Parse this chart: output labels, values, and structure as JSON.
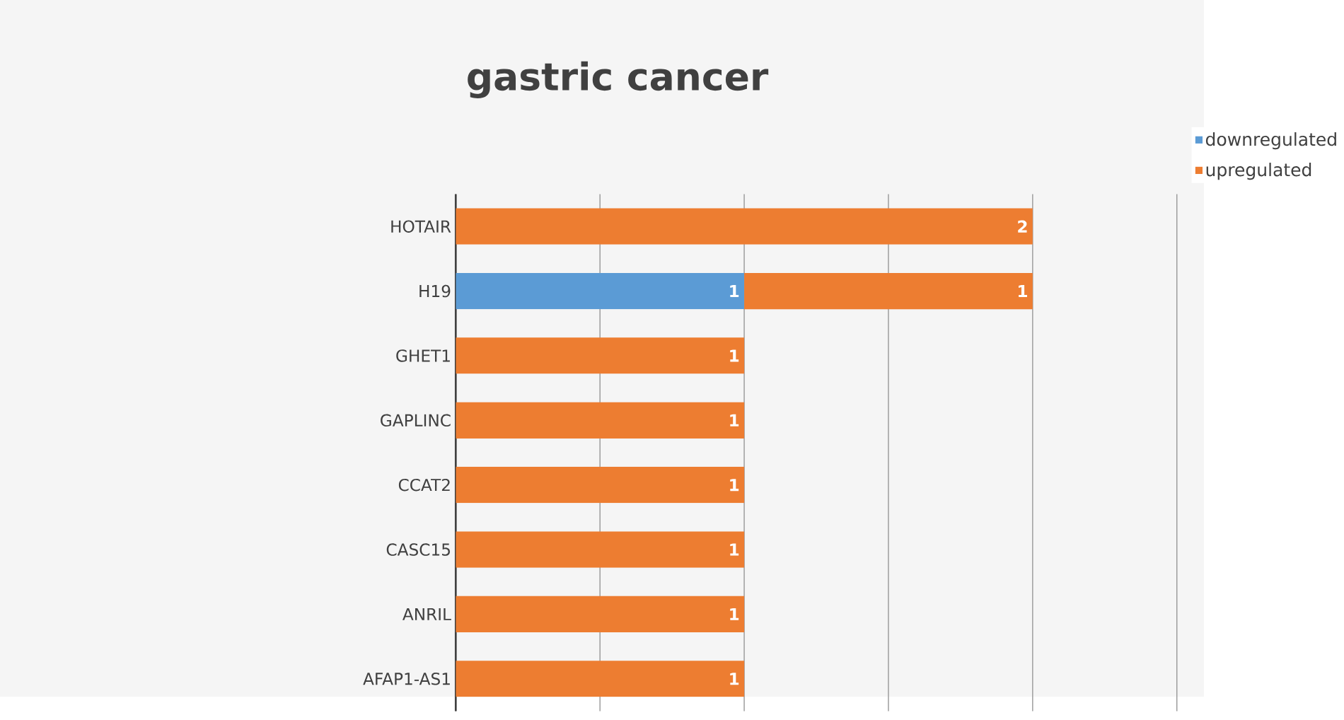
{
  "chart_data": {
    "type": "bar",
    "orientation": "horizontal",
    "stacked": true,
    "title": "gastric cancer",
    "categories": [
      "HOTAIR",
      "H19",
      "GHET1",
      "GAPLINC",
      "CCAT2",
      "CASC15",
      "ANRIL",
      "AFAP1-AS1"
    ],
    "series": [
      {
        "name": "downregulated",
        "color": "#5b9bd5",
        "values": [
          null,
          1,
          null,
          null,
          null,
          null,
          null,
          null
        ]
      },
      {
        "name": "upregulated",
        "color": "#ed7d31",
        "values": [
          2,
          1,
          1,
          1,
          1,
          1,
          1,
          1
        ]
      }
    ],
    "xlim": [
      0,
      2.5
    ],
    "xticks": [
      {
        "value": 0,
        "label": null
      },
      {
        "value": 0.5,
        "label": null
      },
      {
        "value": 1,
        "label": null
      },
      {
        "value": 1.5,
        "label": null
      },
      {
        "value": 2,
        "label": null
      },
      {
        "value": 2.5,
        "label": null
      }
    ],
    "tick_labels": "y",
    "grid": "x",
    "data_labels": true,
    "legend": "top right"
  }
}
